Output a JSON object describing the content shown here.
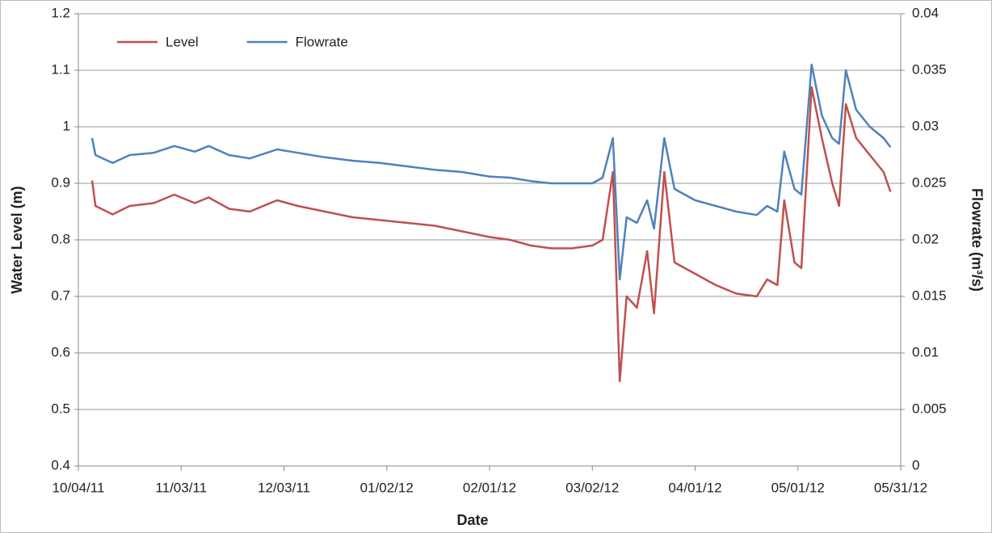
{
  "chart_data": {
    "type": "line",
    "x_label": "Date",
    "y_label": "Water Level (m)",
    "y2_label": "Flowrate (m³/s)",
    "legend": "upper left",
    "grid": true,
    "x": [
      "2011-10-08",
      "2011-10-09",
      "2011-10-14",
      "2011-10-19",
      "2011-10-26",
      "2011-11-01",
      "2011-11-07",
      "2011-11-11",
      "2011-11-17",
      "2011-11-23",
      "2011-12-01",
      "2011-12-07",
      "2011-12-15",
      "2011-12-23",
      "2011-12-31",
      "2012-01-08",
      "2012-01-16",
      "2012-01-24",
      "2012-02-01",
      "2012-02-07",
      "2012-02-13",
      "2012-02-19",
      "2012-02-25",
      "2012-03-02",
      "2012-03-05",
      "2012-03-08",
      "2012-03-10",
      "2012-03-12",
      "2012-03-15",
      "2012-03-18",
      "2012-03-20",
      "2012-03-23",
      "2012-03-26",
      "2012-04-01",
      "2012-04-07",
      "2012-04-13",
      "2012-04-19",
      "2012-04-22",
      "2012-04-25",
      "2012-04-27",
      "2012-04-30",
      "2012-05-02",
      "2012-05-05",
      "2012-05-08",
      "2012-05-11",
      "2012-05-13",
      "2012-05-15",
      "2012-05-18",
      "2012-05-22",
      "2012-05-26",
      "2012-05-28"
    ],
    "series": [
      {
        "name": "Level",
        "color": "#c0504d",
        "axis": "y",
        "values": [
          0.905,
          0.86,
          0.845,
          0.86,
          0.865,
          0.88,
          0.865,
          0.875,
          0.855,
          0.85,
          0.87,
          0.86,
          0.85,
          0.84,
          0.835,
          0.83,
          0.825,
          0.815,
          0.805,
          0.8,
          0.79,
          0.785,
          0.785,
          0.79,
          0.8,
          0.92,
          0.55,
          0.7,
          0.68,
          0.78,
          0.67,
          0.92,
          0.76,
          0.74,
          0.72,
          0.705,
          0.7,
          0.73,
          0.72,
          0.87,
          0.76,
          0.75,
          1.07,
          0.98,
          0.9,
          0.86,
          1.04,
          0.98,
          0.95,
          0.92,
          0.885
        ]
      },
      {
        "name": "Flowrate",
        "color": "#4f81bd",
        "axis": "y2",
        "values": [
          0.029,
          0.0275,
          0.0268,
          0.0275,
          0.0277,
          0.0283,
          0.0278,
          0.0283,
          0.0275,
          0.0272,
          0.028,
          0.0277,
          0.0273,
          0.027,
          0.0268,
          0.0265,
          0.0262,
          0.026,
          0.0256,
          0.0255,
          0.0252,
          0.025,
          0.025,
          0.025,
          0.0255,
          0.029,
          0.0165,
          0.022,
          0.0215,
          0.0235,
          0.021,
          0.029,
          0.0245,
          0.0235,
          0.023,
          0.0225,
          0.0222,
          0.023,
          0.0225,
          0.0278,
          0.0245,
          0.024,
          0.0355,
          0.031,
          0.029,
          0.0285,
          0.035,
          0.0315,
          0.03,
          0.029,
          0.0282
        ]
      }
    ],
    "xlim": [
      "2011-10-04",
      "2012-05-31"
    ],
    "xticks": [
      {
        "value": "2011-10-04",
        "label": "10/04/11"
      },
      {
        "value": "2011-11-03",
        "label": "11/03/11"
      },
      {
        "value": "2011-12-03",
        "label": "12/03/11"
      },
      {
        "value": "2012-01-02",
        "label": "01/02/12"
      },
      {
        "value": "2012-02-01",
        "label": "02/01/12"
      },
      {
        "value": "2012-03-02",
        "label": "03/02/12"
      },
      {
        "value": "2012-04-01",
        "label": "04/01/12"
      },
      {
        "value": "2012-05-01",
        "label": "05/01/12"
      },
      {
        "value": "2012-05-31",
        "label": "05/31/12"
      }
    ],
    "ylim": [
      0.4,
      1.2
    ],
    "yticks": [
      0.4,
      0.5,
      0.6,
      0.7,
      0.8,
      0.9,
      1,
      1.1,
      1.2
    ],
    "y2lim": [
      0,
      0.04
    ],
    "y2ticks": [
      0,
      0.005,
      0.01,
      0.015,
      0.02,
      0.025,
      0.03,
      0.035,
      0.04
    ]
  }
}
